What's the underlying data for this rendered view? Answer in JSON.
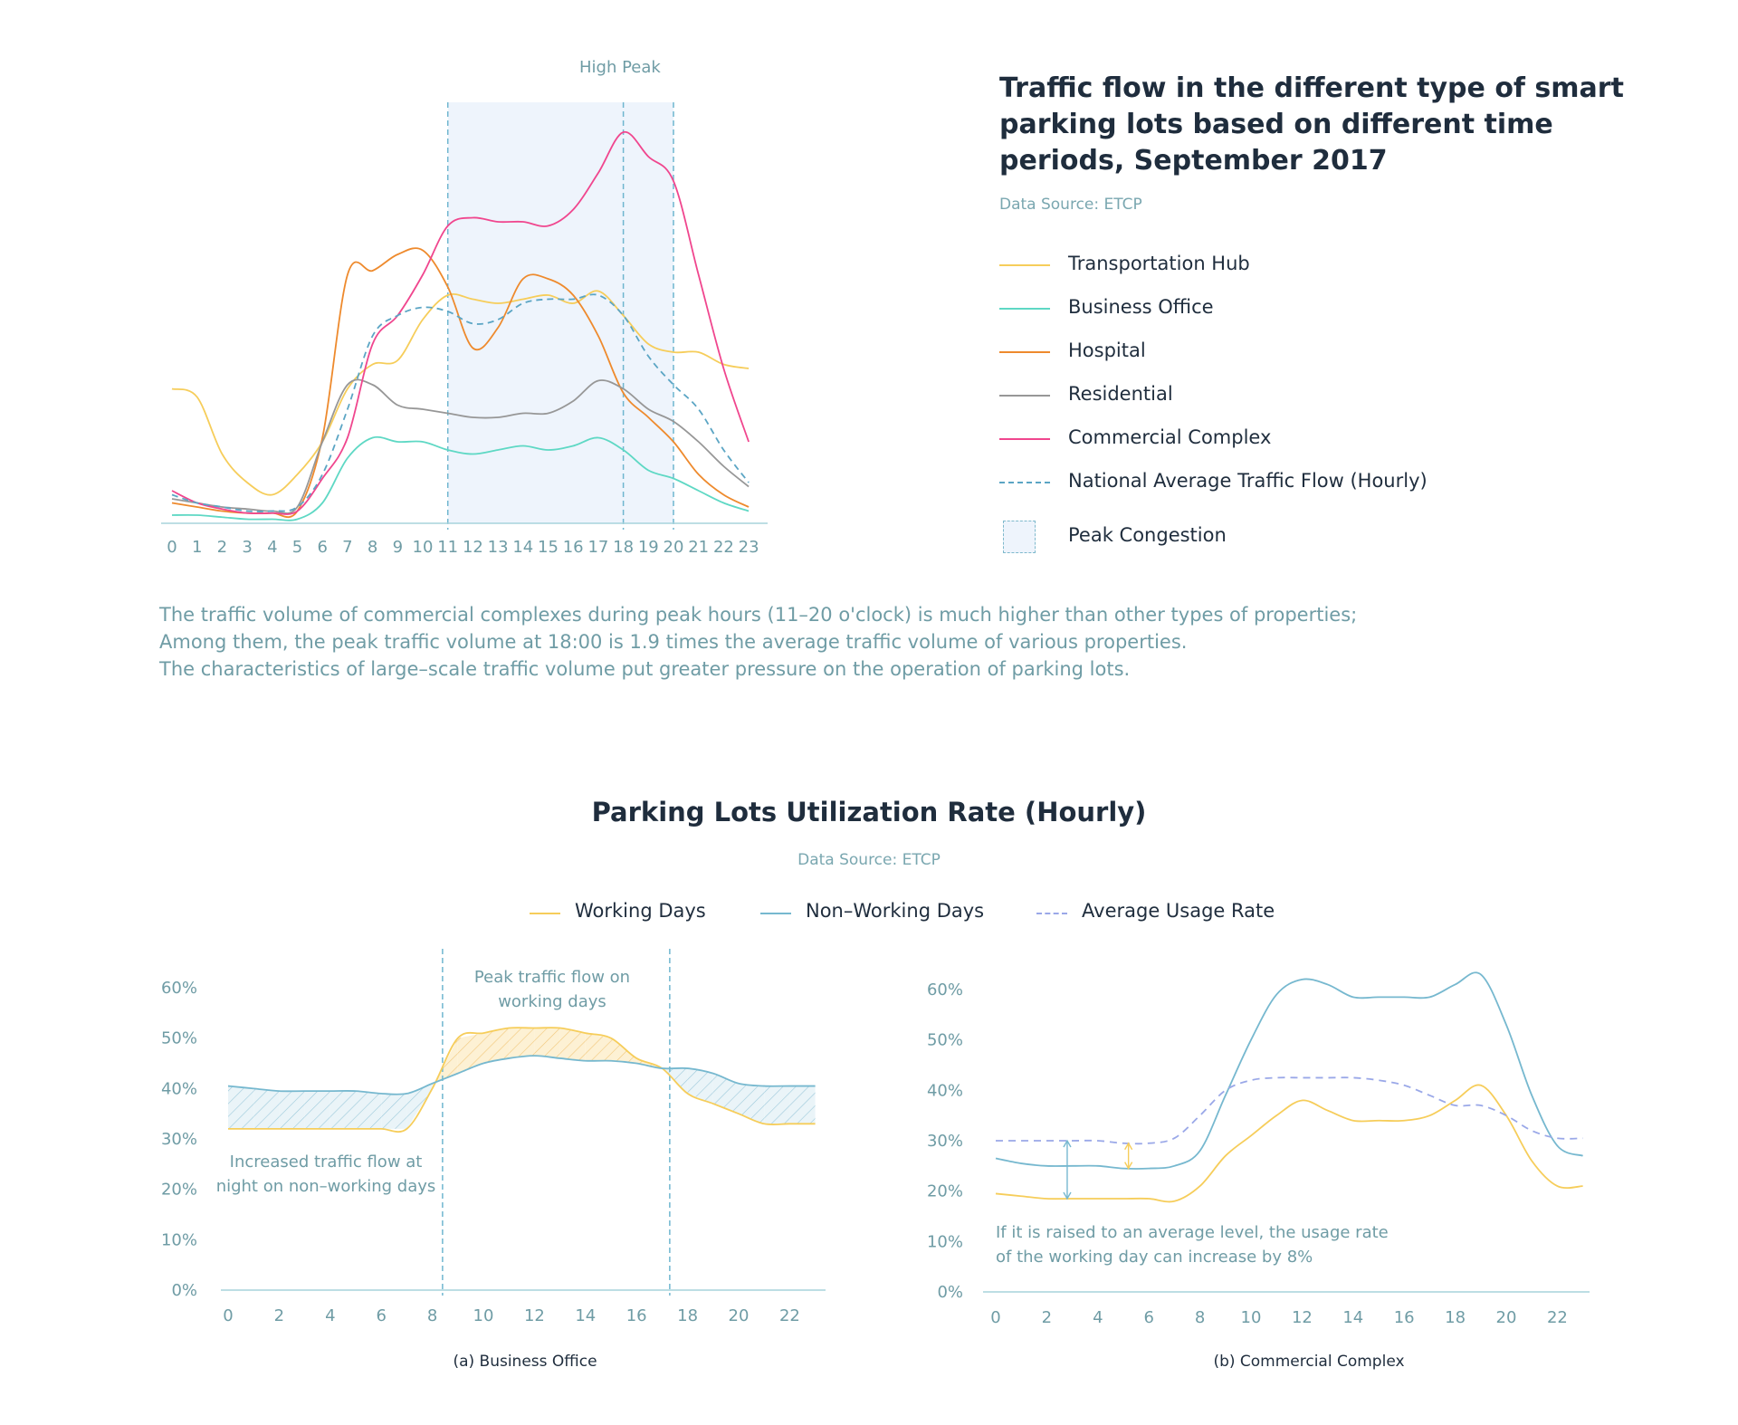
{
  "chart_data": [
    {
      "type": "line",
      "title": "Traffic flow in the different type of smart parking lots based on different time periods, September 2017",
      "subtitle": "Data Source: ETCP",
      "x": [
        0,
        1,
        2,
        3,
        4,
        5,
        6,
        7,
        8,
        9,
        10,
        11,
        12,
        13,
        14,
        15,
        16,
        17,
        18,
        19,
        20,
        21,
        22,
        23
      ],
      "ylim": [
        0,
        100
      ],
      "peak_band": [
        11,
        20
      ],
      "peak_label": "High Peak",
      "peak_marker": 18,
      "series": [
        {
          "name": "Transportation Hub",
          "color": "#f6cd5a",
          "dash": false,
          "values": [
            33,
            31,
            17,
            10,
            7,
            12,
            20,
            33,
            39,
            40,
            50,
            56,
            55,
            54,
            55,
            56,
            54,
            57,
            51,
            44,
            42,
            42,
            39,
            38
          ]
        },
        {
          "name": "Business Office",
          "color": "#5ed8c4",
          "dash": false,
          "values": [
            2,
            2,
            1.5,
            1,
            1,
            1,
            5,
            16,
            21,
            20,
            20,
            18,
            17,
            18,
            19,
            18,
            19,
            21,
            18,
            13,
            11,
            8,
            5,
            3
          ]
        },
        {
          "name": "Hospital",
          "color": "#ee8a2d",
          "dash": false,
          "values": [
            5,
            4,
            3,
            2.5,
            2.5,
            3,
            21,
            61,
            62,
            66,
            67,
            58,
            43,
            48,
            60,
            60,
            56,
            46,
            32,
            26,
            20,
            12,
            7,
            4
          ]
        },
        {
          "name": "Residential",
          "color": "#979797",
          "dash": false,
          "values": [
            6,
            5,
            4,
            3.5,
            3,
            4,
            20,
            34,
            34,
            29,
            28,
            27,
            26,
            26,
            27,
            27,
            30,
            35,
            33,
            28,
            25,
            20,
            14,
            9
          ]
        },
        {
          "name": "Commercial Complex",
          "color": "#f0468e",
          "dash": false,
          "values": [
            8,
            5,
            3.5,
            2.5,
            2.5,
            3,
            11,
            21,
            44,
            51,
            61,
            73,
            75,
            74,
            74,
            73,
            77,
            86,
            96,
            90,
            84,
            61,
            38,
            20
          ]
        },
        {
          "name": "National Average Traffic Flow (Hourly)",
          "color": "#5ba5c4",
          "dash": true,
          "values": [
            7,
            5,
            4,
            3,
            3,
            4,
            12,
            28,
            46,
            51,
            53,
            52,
            49,
            50,
            54,
            55,
            55,
            56,
            51,
            41,
            34,
            28,
            18,
            10
          ]
        }
      ],
      "xticks": [
        "0",
        "1",
        "2",
        "3",
        "4",
        "5",
        "6",
        "7",
        "8",
        "9",
        "10",
        "11",
        "12",
        "13",
        "14",
        "15",
        "16",
        "17",
        "18",
        "19",
        "20",
        "21",
        "22",
        "23"
      ],
      "legend_extra": "Peak Congestion"
    },
    {
      "type": "line",
      "title": "(a) Business Office",
      "x": [
        0,
        1,
        2,
        3,
        4,
        5,
        6,
        7,
        8,
        9,
        10,
        11,
        12,
        13,
        14,
        15,
        16,
        17,
        18,
        19,
        20,
        21,
        22,
        23
      ],
      "ylim": [
        0,
        60
      ],
      "yticks": [
        "0%",
        "10%",
        "20%",
        "30%",
        "40%",
        "50%",
        "60%"
      ],
      "xticks": [
        "0",
        "2",
        "4",
        "6",
        "8",
        "10",
        "12",
        "14",
        "16",
        "18",
        "20",
        "22"
      ],
      "series": [
        {
          "name": "Working Days",
          "color": "#f6cd5a",
          "values": [
            32,
            32,
            32,
            32,
            32,
            32,
            32,
            32,
            40,
            50,
            51,
            52,
            52,
            52,
            51,
            50,
            46,
            44,
            39,
            37,
            35,
            33,
            33,
            33
          ]
        },
        {
          "name": "Non-Working Days",
          "color": "#76b8cf",
          "values": [
            40.5,
            40,
            39.5,
            39.5,
            39.5,
            39.5,
            39,
            39,
            41,
            43,
            45,
            46,
            46.5,
            46,
            45.5,
            45.5,
            45,
            44,
            44,
            43,
            41,
            40.5,
            40.5,
            40.5
          ]
        }
      ],
      "peak_band": [
        8.4,
        17.3
      ],
      "annotations": [
        "Peak traffic flow on working days",
        "Increased traffic flow at night on non-working days"
      ]
    },
    {
      "type": "line",
      "title": "(b) Commercial Complex",
      "x": [
        0,
        1,
        2,
        3,
        4,
        5,
        6,
        7,
        8,
        9,
        10,
        11,
        12,
        13,
        14,
        15,
        16,
        17,
        18,
        19,
        20,
        21,
        22,
        23
      ],
      "ylim": [
        0,
        60
      ],
      "yticks": [
        "0%",
        "10%",
        "20%",
        "30%",
        "40%",
        "50%",
        "60%"
      ],
      "xticks": [
        "0",
        "2",
        "4",
        "6",
        "8",
        "10",
        "12",
        "14",
        "16",
        "18",
        "20",
        "22"
      ],
      "series": [
        {
          "name": "Working Days",
          "color": "#f6cd5a",
          "values": [
            19.5,
            19,
            18.5,
            18.5,
            18.5,
            18.5,
            18.5,
            18,
            21,
            27,
            31,
            35,
            38,
            36,
            34,
            34,
            34,
            35,
            38,
            41,
            35,
            26,
            21,
            21
          ]
        },
        {
          "name": "Non-Working Days",
          "color": "#76b8cf",
          "values": [
            26.5,
            25.5,
            25,
            25,
            25,
            24.5,
            24.5,
            25,
            28,
            39,
            50,
            59,
            62,
            61,
            58.5,
            58.5,
            58.5,
            58.5,
            61,
            63,
            53,
            39,
            29,
            27
          ]
        },
        {
          "name": "Average Usage Rate",
          "color": "#9aa8e8",
          "dash": true,
          "values": [
            30,
            30,
            30,
            30,
            30,
            29.5,
            29.5,
            30.5,
            35,
            40,
            42,
            42.5,
            42.5,
            42.5,
            42.5,
            42,
            41,
            39,
            37,
            37,
            35,
            32,
            30.5,
            30.5
          ]
        }
      ],
      "annotations": [
        "If it is raised to an average level, the usage rate of the working day can increase by 8%"
      ]
    }
  ],
  "top": {
    "title": "Traffic flow in the different type of smart parking lots based on different time periods, September 2017",
    "source": "Data Source: ETCP",
    "high_peak": "High Peak",
    "legend": [
      {
        "label": "Transportation Hub",
        "color": "#f6cd5a",
        "dash": false
      },
      {
        "label": "Business Office",
        "color": "#5ed8c4",
        "dash": false
      },
      {
        "label": "Hospital",
        "color": "#ee8a2d",
        "dash": false
      },
      {
        "label": "Residential",
        "color": "#979797",
        "dash": false
      },
      {
        "label": "Commercial Complex",
        "color": "#f0468e",
        "dash": false
      },
      {
        "label": "National Average Traffic Flow (Hourly)",
        "color": "#5ba5c4",
        "dash": true
      }
    ],
    "peak_legend": "Peak Congestion"
  },
  "summary": [
    "The traffic volume of commercial complexes during peak hours (11–20 o'clock) is much higher than other types of properties;",
    "Among them, the peak traffic volume at 18:00 is 1.9 times the average traffic volume of various properties.",
    "The characteristics of large–scale traffic volume put greater pressure on the operation of parking lots."
  ],
  "util": {
    "title": "Parking Lots Utilization Rate (Hourly)",
    "source": "Data Source: ETCP",
    "legend": [
      {
        "label": "Working Days",
        "color": "#f6cd5a",
        "dash": false
      },
      {
        "label": "Non–Working Days",
        "color": "#76b8cf",
        "dash": false
      },
      {
        "label": "Average Usage Rate",
        "color": "#9aa8e8",
        "dash": true
      }
    ],
    "ann_a_peak": [
      "Peak traffic flow on",
      "working days"
    ],
    "ann_a_night": [
      "Increased traffic flow at",
      "night on non–working days"
    ],
    "ann_b": [
      "If it is raised to an average level, the usage rate",
      "of the working day can increase by 8%"
    ],
    "caption_a": "(a) Business Office",
    "caption_b": "(b) Commercial Complex"
  }
}
